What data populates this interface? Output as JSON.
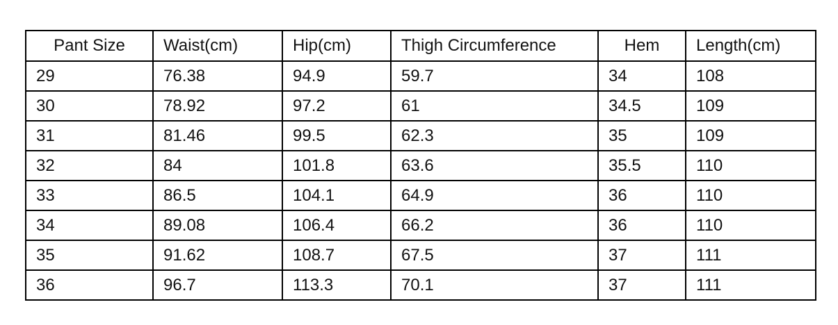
{
  "table": {
    "header": [
      "Pant Size",
      "Waist(cm)",
      "Hip(cm)",
      "Thigh Circumference",
      "Hem",
      "Length(cm)"
    ],
    "rows": [
      [
        "29",
        "76.38",
        "94.9",
        "59.7",
        "34",
        "108"
      ],
      [
        "30",
        "78.92",
        "97.2",
        "61",
        "34.5",
        "109"
      ],
      [
        "31",
        "81.46",
        "99.5",
        "62.3",
        "35",
        "109"
      ],
      [
        "32",
        "84",
        "101.8",
        "63.6",
        "35.5",
        "110"
      ],
      [
        "33",
        "86.5",
        "104.1",
        "64.9",
        "36",
        "110"
      ],
      [
        "34",
        "89.08",
        "106.4",
        "66.2",
        "36",
        "110"
      ],
      [
        "35",
        "91.62",
        "108.7",
        "67.5",
        "37",
        "111"
      ],
      [
        "36",
        "96.7",
        "113.3",
        "70.1",
        "37",
        "111"
      ]
    ]
  }
}
